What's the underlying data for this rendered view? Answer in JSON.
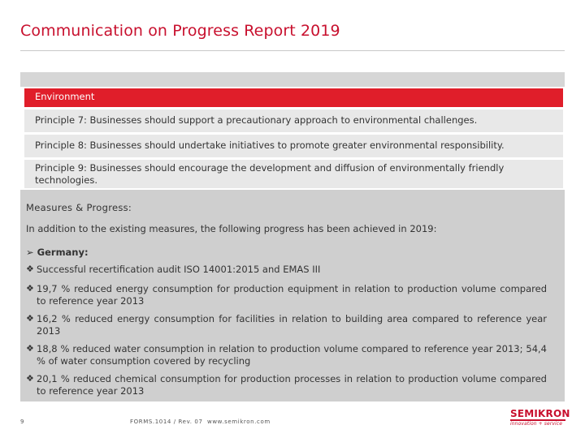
{
  "header": {
    "title": "Communication on Progress Report 2019"
  },
  "table": {
    "heading": "Environment",
    "principles": [
      "Principle 7: Businesses should support a precautionary approach to environmental challenges.",
      "Principle 8: Businesses should undertake initiatives to promote greater environmental responsibility.",
      "Principle 9: Businesses should encourage the development and diffusion of environmentally friendly technologies."
    ]
  },
  "measures": {
    "heading": "Measures & Progress:",
    "intro": "In addition to the existing measures, the following progress has been achieved in 2019:",
    "country": "Germany:",
    "arrow_symbol": "➢",
    "bullet_symbol": "❖",
    "bullets": [
      "Successful recertification audit ISO 14001:2015 and EMAS III",
      "19,7 % reduced energy consumption for production equipment in relation to production volume compared to reference year 2013",
      "16,2 % reduced energy consumption for facilities in relation to building area compared to reference year 2013",
      "18,8 % reduced water consumption in relation to production volume compared to reference year 2013; 54,4 % of water consumption covered by recycling",
      "20,1 % reduced chemical consumption for production processes in relation to production volume compared to reference year 2013"
    ]
  },
  "footer": {
    "page_number": "9",
    "form": "FORMS.1014 / Rev. 07",
    "url": "www.semikron.com"
  },
  "logo": {
    "word": "SEMIKRON",
    "tagline": "innovation + service"
  },
  "colors": {
    "accent": "#c8102e",
    "heading_row": "#e01e2a",
    "principle_row": "#e8e8e8",
    "measures_bg": "#cfcfcf"
  }
}
